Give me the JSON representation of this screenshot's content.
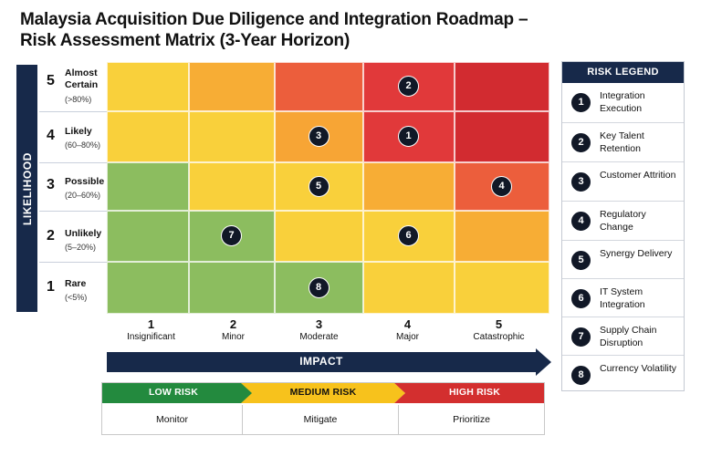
{
  "title": {
    "line1": "Malaysia Acquisition Due Diligence and Integration Roadmap –",
    "line2": "Risk Assessment Matrix (3-Year Horizon)"
  },
  "y_axis_label": "LIKELIHOOD",
  "x_axis_label": "IMPACT",
  "likelihood_levels": [
    {
      "num": "5",
      "name": "Almost Certain",
      "range": "(>80%)"
    },
    {
      "num": "4",
      "name": "Likely",
      "range": "(60–80%)"
    },
    {
      "num": "3",
      "name": "Possible",
      "range": "(20–60%)"
    },
    {
      "num": "2",
      "name": "Unlikely",
      "range": "(5–20%)"
    },
    {
      "num": "1",
      "name": "Rare",
      "range": "(<5%)"
    }
  ],
  "impact_levels": [
    {
      "num": "1",
      "name": "Insignificant"
    },
    {
      "num": "2",
      "name": "Minor"
    },
    {
      "num": "3",
      "name": "Moderate"
    },
    {
      "num": "4",
      "name": "Major"
    },
    {
      "num": "5",
      "name": "Catastrophic"
    }
  ],
  "matrix_colors": [
    [
      "#f9d03b",
      "#f7ad35",
      "#ec5e3c",
      "#e1393a",
      "#d22b30"
    ],
    [
      "#f9d03b",
      "#f9d03b",
      "#f7a535",
      "#e1393a",
      "#d22b30"
    ],
    [
      "#8cbd5f",
      "#f9d03b",
      "#f9d03b",
      "#f7ad35",
      "#ec5e3c"
    ],
    [
      "#8cbd5f",
      "#8cbd5f",
      "#f9d03b",
      "#f9d03b",
      "#f7ad35"
    ],
    [
      "#8cbd5f",
      "#8cbd5f",
      "#8cbd5f",
      "#f9d03b",
      "#f9d03b"
    ]
  ],
  "placed_risks": [
    {
      "id": "1",
      "likelihood": 4,
      "impact": 4
    },
    {
      "id": "2",
      "likelihood": 5,
      "impact": 4
    },
    {
      "id": "3",
      "likelihood": 4,
      "impact": 3
    },
    {
      "id": "4",
      "likelihood": 3,
      "impact": 5
    },
    {
      "id": "5",
      "likelihood": 3,
      "impact": 3
    },
    {
      "id": "6",
      "likelihood": 2,
      "impact": 4
    },
    {
      "id": "7",
      "likelihood": 2,
      "impact": 2
    },
    {
      "id": "8",
      "likelihood": 1,
      "impact": 3
    }
  ],
  "risk_tiers": [
    {
      "label": "LOW RISK",
      "action": "Monitor",
      "color": "#238a3e",
      "text_color": "#ffffff"
    },
    {
      "label": "MEDIUM RISK",
      "action": "Mitigate",
      "color": "#f7c21c",
      "text_color": "#111111"
    },
    {
      "label": "HIGH RISK",
      "action": "Prioritize",
      "color": "#d32f2f",
      "text_color": "#ffffff"
    }
  ],
  "risk_legend": {
    "title": "RISK LEGEND",
    "items": [
      {
        "id": "1",
        "label": "Integration Execution"
      },
      {
        "id": "2",
        "label": "Key Talent Retention"
      },
      {
        "id": "3",
        "label": "Customer Attrition"
      },
      {
        "id": "4",
        "label": "Regulatory Change"
      },
      {
        "id": "5",
        "label": "Synergy Delivery"
      },
      {
        "id": "6",
        "label": "IT System Integration"
      },
      {
        "id": "7",
        "label": "Supply Chain Disruption"
      },
      {
        "id": "8",
        "label": "Currency Volatility"
      }
    ]
  },
  "colors": {
    "navy": "#17294a",
    "badge": "#111827"
  }
}
